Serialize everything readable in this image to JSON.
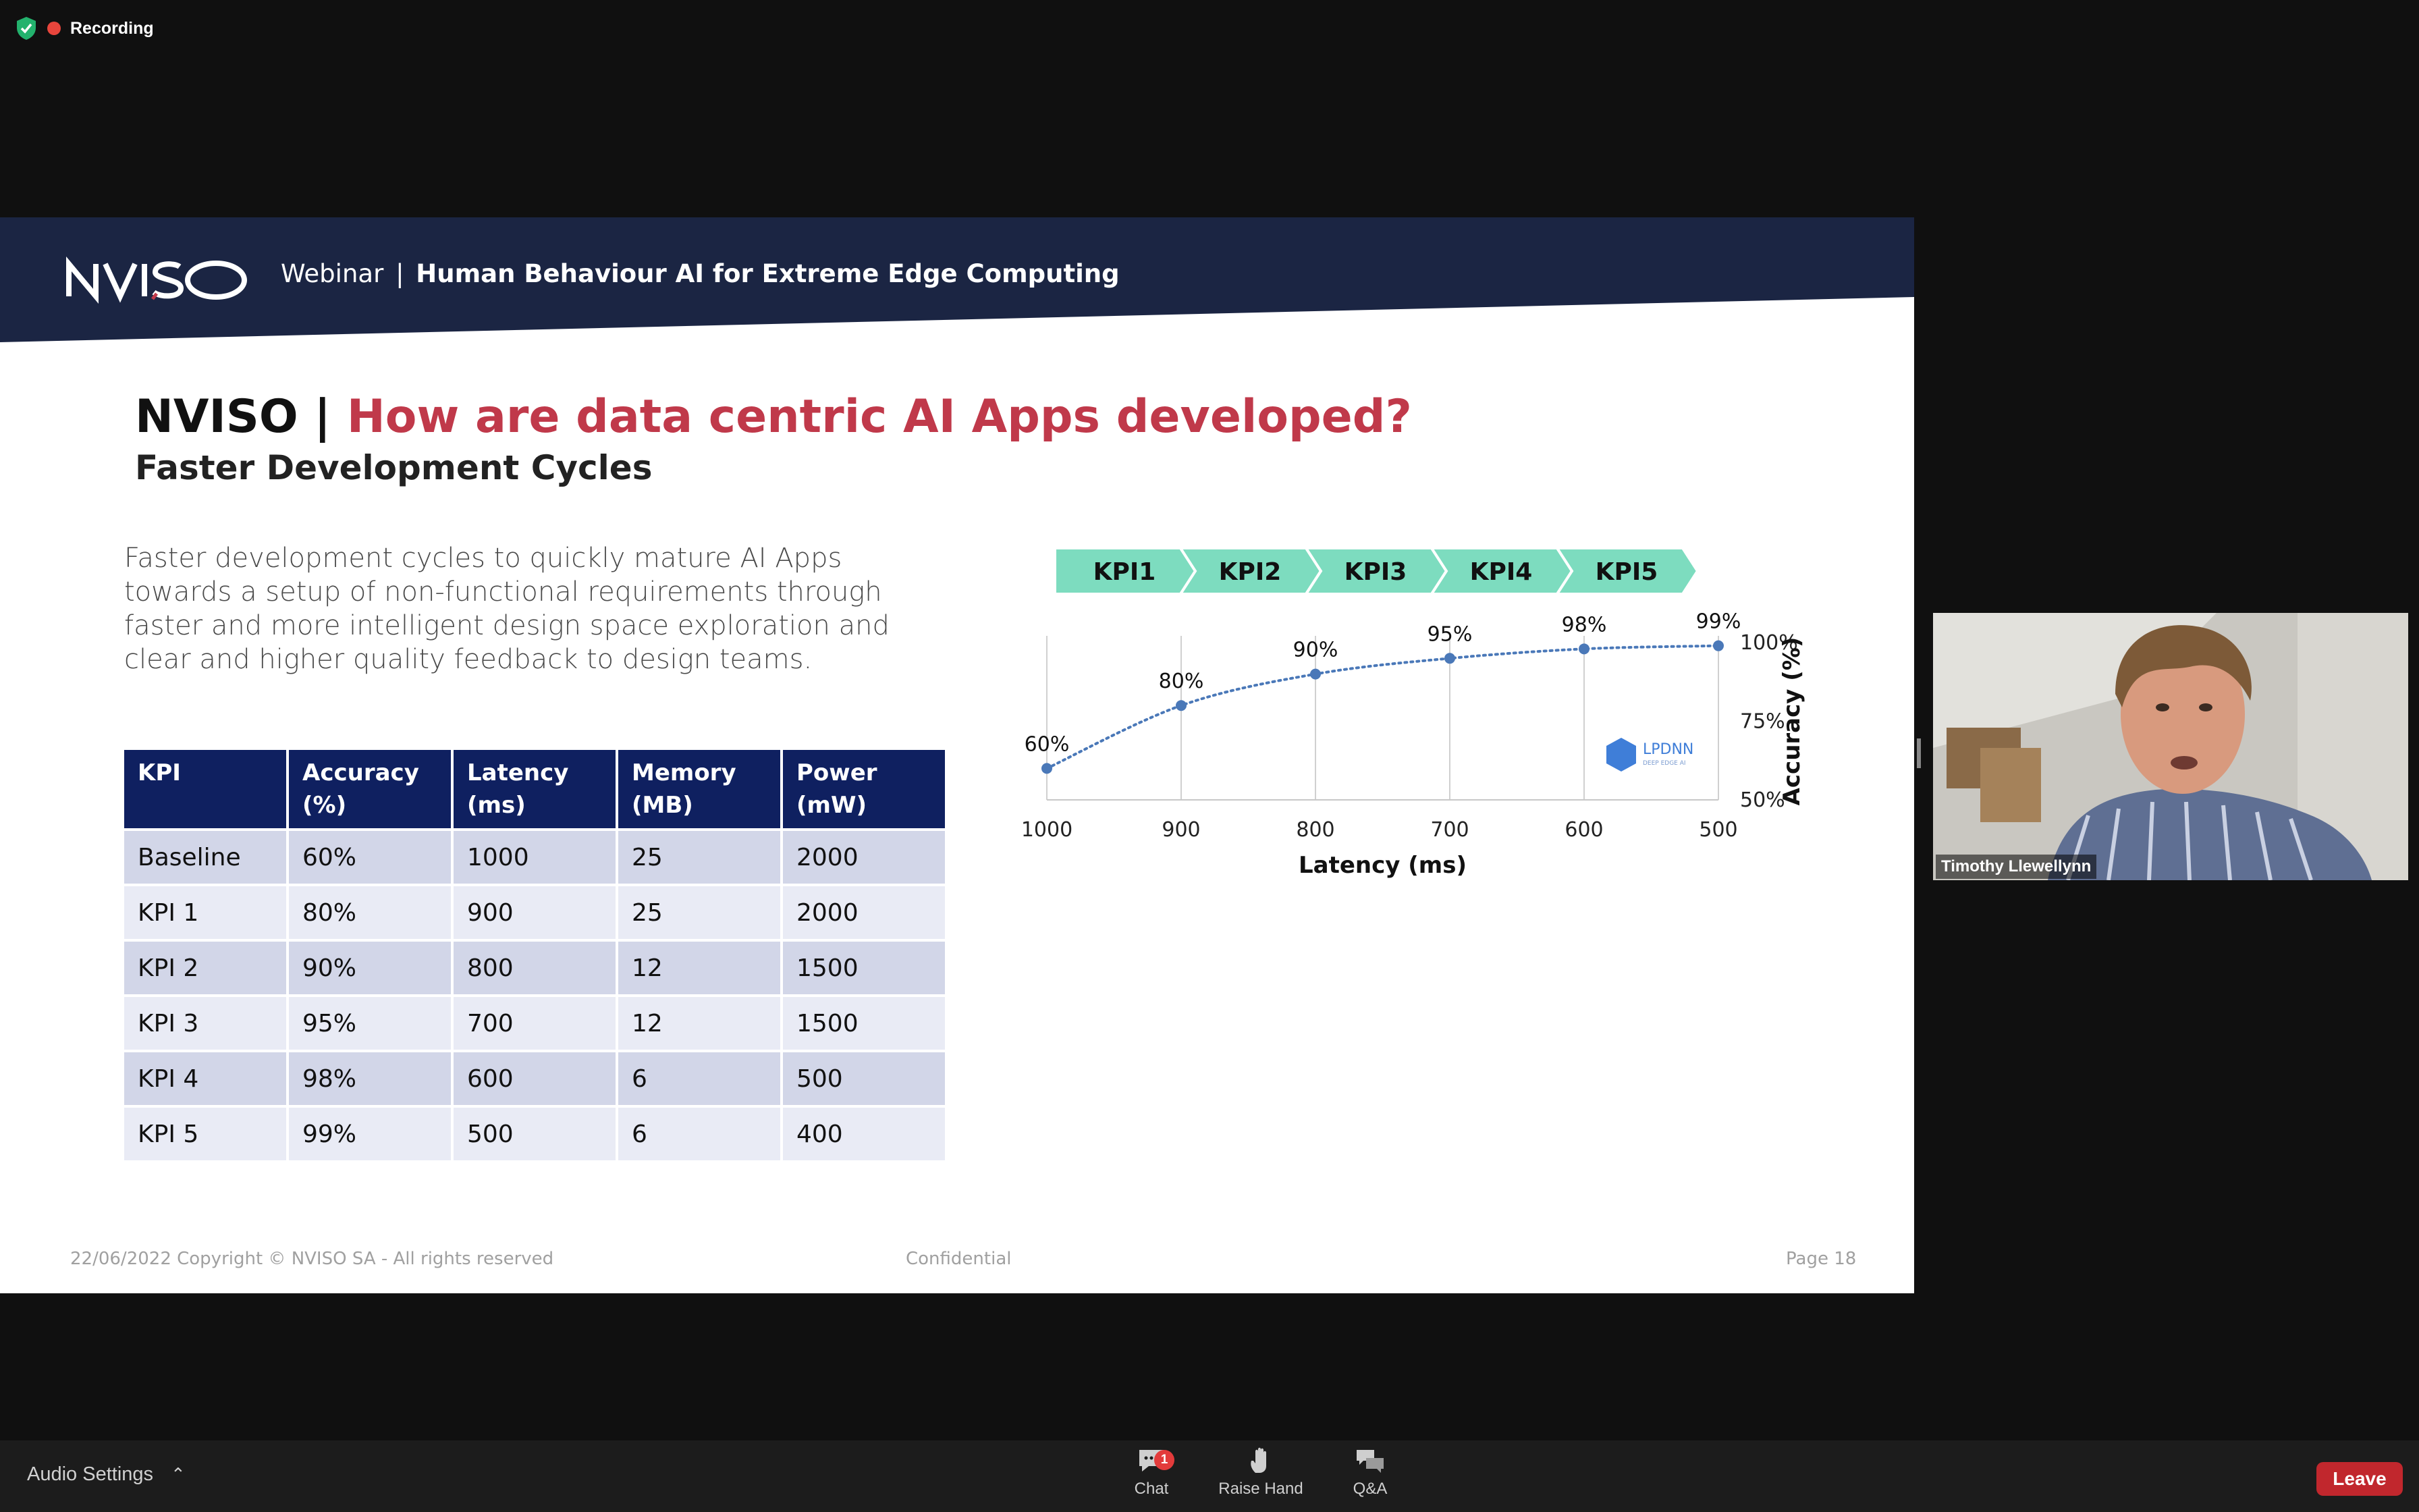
{
  "recording": {
    "label": "Recording"
  },
  "slide": {
    "banner": {
      "webinar": "Webinar",
      "separator": "|",
      "title": "Human Behaviour AI for Extreme Edge Computing"
    },
    "title": {
      "brand": "NVISO",
      "separator": "|",
      "highlight": "How are data centric AI Apps developed?"
    },
    "subtitle": "Faster Development Cycles",
    "body": "Faster development cycles to quickly mature AI Apps towards a setup of non-functional requirements through faster and more intelligent design space exploration and clear and higher quality feedback to design teams.",
    "table": {
      "headers": [
        [
          "KPI",
          ""
        ],
        [
          "Accuracy",
          "(%)"
        ],
        [
          "Latency",
          "(ms)"
        ],
        [
          "Memory",
          "(MB)"
        ],
        [
          "Power",
          "(mW)"
        ]
      ],
      "rows": [
        [
          "Baseline",
          "60%",
          "1000",
          "25",
          "2000"
        ],
        [
          "KPI 1",
          "80%",
          "900",
          "25",
          "2000"
        ],
        [
          "KPI 2",
          "90%",
          "800",
          "12",
          "1500"
        ],
        [
          "KPI 3",
          "95%",
          "700",
          "12",
          "1500"
        ],
        [
          "KPI 4",
          "98%",
          "600",
          "6",
          "500"
        ],
        [
          "KPI 5",
          "99%",
          "500",
          "6",
          "400"
        ]
      ]
    },
    "footer": {
      "left": "22/06/2022  Copyright © NVISO SA - All rights reserved",
      "center": "Confidential",
      "right": "Page 18"
    }
  },
  "chart_data": {
    "type": "line",
    "title": "",
    "stages": [
      "KPI1",
      "KPI2",
      "KPI3",
      "KPI4",
      "KPI5"
    ],
    "x": [
      1000,
      900,
      800,
      700,
      600,
      500
    ],
    "y": [
      60,
      80,
      90,
      95,
      98,
      99
    ],
    "point_labels": [
      "60%",
      "80%",
      "90%",
      "95%",
      "98%",
      "99%"
    ],
    "xlabel": "Latency (ms)",
    "ylabel": "Accuracy (%)",
    "x_ticks": [
      "1000",
      "900",
      "800",
      "700",
      "600",
      "500"
    ],
    "y_ticks": [
      "50%",
      "75%",
      "100%"
    ],
    "xlim": [
      1000,
      500
    ],
    "ylim": [
      50,
      100
    ],
    "grid": "vertical",
    "y_axis_side": "right",
    "line_style": "dotted",
    "color": "#4a78b8",
    "stage_color": "#7ddcbf",
    "watermark": {
      "text": "LPDNN",
      "subtext": "DEEP EDGE AI"
    }
  },
  "participant": {
    "name": "Timothy Llewellynn"
  },
  "toolbar": {
    "audio_settings": "Audio Settings",
    "chat": {
      "label": "Chat",
      "badge": "1"
    },
    "raise_hand": "Raise Hand",
    "qa": "Q&A",
    "leave": "Leave"
  }
}
